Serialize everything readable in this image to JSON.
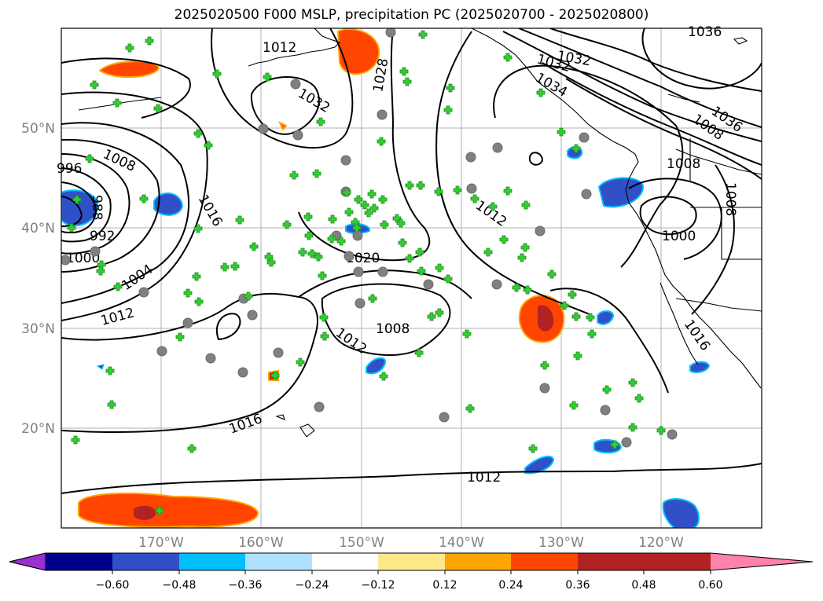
{
  "title": "2025020500 F000 MSLP, precipitation PC (2025020700 - 2025020800)",
  "lat_labels": [
    "50°N",
    "40°N",
    "30°N",
    "20°N"
  ],
  "lon_labels": [
    "170°W",
    "160°W",
    "150°W",
    "140°W",
    "130°W",
    "120°W"
  ],
  "mslp_labels": [
    "1012",
    "1032",
    "1028",
    "1032",
    "1032",
    "1034",
    "1036",
    "1036",
    "1008",
    "1008",
    "1016",
    "1012",
    "1008",
    "1000",
    "1008",
    "996",
    "988",
    "992",
    "1000",
    "1004",
    "1012",
    "1020",
    "1008",
    "1012",
    "1016",
    "1012",
    "1016"
  ],
  "colorbar": {
    "ticks": [
      "−0.60",
      "−0.48",
      "−0.36",
      "−0.24",
      "−0.12",
      "0.12",
      "0.24",
      "0.36",
      "0.48",
      "0.60"
    ],
    "colors": [
      "#9b30d0",
      "#00008b",
      "#3050c8",
      "#00bfff",
      "#b0e2ff",
      "#ffffff",
      "#ffe88a",
      "#ffa500",
      "#ff4500",
      "#b22222",
      "#ff82ab"
    ]
  },
  "legend_colors": {
    "station_circle": "#808080",
    "station_plus": "#33cc33"
  }
}
